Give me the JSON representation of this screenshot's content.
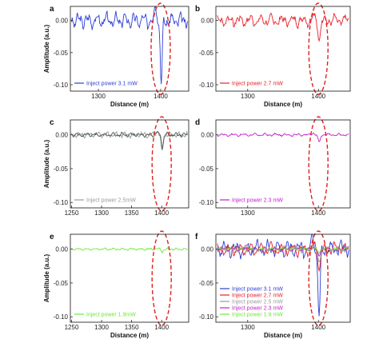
{
  "colors": {
    "p31": "#2b3fd6",
    "p27": "#e8202a",
    "p25": "#9a9a9a",
    "p23": "#c020c8",
    "p19": "#6ee838",
    "dark": "#4b5a50",
    "ellipse": "#e02020"
  },
  "chart_data": [
    {
      "panel": "a",
      "type": "line",
      "xlabel": "Distance (m)",
      "ylabel": "Amplitude (a.u.)",
      "xlim": [
        1255,
        1445
      ],
      "ylim": [
        -0.11,
        0.022
      ],
      "xticks": [
        "1300",
        "1400"
      ],
      "yticks": [
        "0.00",
        "-0.05",
        "-0.10"
      ],
      "highlight_x": 1400,
      "show_xlabel": true,
      "show_ylabel": true,
      "series": [
        {
          "name": "Inject power 3.1 mW",
          "color": "#2b3fd6",
          "amp": 0.011,
          "dip": -0.1,
          "seed": 3
        }
      ]
    },
    {
      "panel": "b",
      "type": "line",
      "xlabel": "Distance (m)",
      "ylabel": "",
      "xlim": [
        1255,
        1445
      ],
      "ylim": [
        -0.11,
        0.022
      ],
      "xticks": [
        "1300",
        "1400"
      ],
      "yticks": [
        "0.00",
        "-0.05",
        "-0.10"
      ],
      "highlight_x": 1400,
      "show_xlabel": true,
      "show_ylabel": false,
      "series": [
        {
          "name": "Inject power 2.7 mW",
          "color": "#e8202a",
          "amp": 0.009,
          "dip": -0.03,
          "seed": 7
        }
      ]
    },
    {
      "panel": "c",
      "type": "line",
      "xlabel": "Distance (m)",
      "ylabel": "Amplitude (a.u.)",
      "xlim": [
        1248,
        1445
      ],
      "ylim": [
        -0.108,
        0.022
      ],
      "xticks": [
        "1250",
        "1300",
        "1350",
        "1400"
      ],
      "yticks": [
        "0.00",
        "-0.05",
        "-0.10"
      ],
      "highlight_x": 1400,
      "show_xlabel": false,
      "show_ylabel": true,
      "series": [
        {
          "name": "Inject power 2.5mW",
          "color": "#9a9a9a",
          "amp": 0.004,
          "dip": -0.022,
          "seed": 11
        },
        {
          "name": "",
          "color": "#4b5a50",
          "amp": 0.003,
          "dip": -0.02,
          "seed": 13
        }
      ]
    },
    {
      "panel": "d",
      "type": "line",
      "xlabel": "",
      "ylabel": "",
      "xlim": [
        1255,
        1445
      ],
      "ylim": [
        -0.108,
        0.022
      ],
      "xticks": [
        "1300",
        "1400"
      ],
      "yticks": [
        "0.00",
        "-0.05",
        "-0.10"
      ],
      "highlight_x": 1400,
      "show_xlabel": false,
      "show_ylabel": false,
      "series": [
        {
          "name": "Inject power 2.3 mW",
          "color": "#c020c8",
          "amp": 0.002,
          "dip": -0.012,
          "seed": 17
        }
      ]
    },
    {
      "panel": "e",
      "type": "line",
      "xlabel": "Distance (m)",
      "ylabel": "Amplitude (a.u.)",
      "xlim": [
        1248,
        1445
      ],
      "ylim": [
        -0.108,
        0.022
      ],
      "xticks": [
        "1250",
        "1300",
        "1350",
        "1400"
      ],
      "yticks": [
        "0.00",
        "-0.05",
        "-0.10"
      ],
      "highlight_x": 1400,
      "show_xlabel": true,
      "show_ylabel": true,
      "series": [
        {
          "name": "Inject power 1.9mW",
          "color": "#6ee838",
          "amp": 0.0015,
          "dip": -0.004,
          "seed": 19
        }
      ]
    },
    {
      "panel": "f",
      "type": "line",
      "xlabel": "Distance (m)",
      "ylabel": "",
      "xlim": [
        1255,
        1445
      ],
      "ylim": [
        -0.108,
        0.022
      ],
      "xticks": [
        "1300",
        "1400"
      ],
      "yticks": [
        "0.00",
        "-0.05",
        "-0.10"
      ],
      "highlight_x": 1400,
      "show_xlabel": true,
      "show_ylabel": false,
      "series": [
        {
          "name": "Inject power 3.1 mW",
          "color": "#2b3fd6",
          "amp": 0.011,
          "dip": -0.1,
          "seed": 3
        },
        {
          "name": "Inject power 2.7 mW",
          "color": "#e8202a",
          "amp": 0.009,
          "dip": -0.03,
          "seed": 7
        },
        {
          "name": "Inject power 2.5 mW",
          "color": "#9a9a9a",
          "amp": 0.004,
          "dip": -0.022,
          "seed": 11
        },
        {
          "name": "Inject power 2.3 mW",
          "color": "#c020c8",
          "amp": 0.002,
          "dip": -0.012,
          "seed": 17
        },
        {
          "name": "Inject power 1.9 mW",
          "color": "#6ee838",
          "amp": 0.0015,
          "dip": -0.004,
          "seed": 19
        }
      ]
    }
  ]
}
